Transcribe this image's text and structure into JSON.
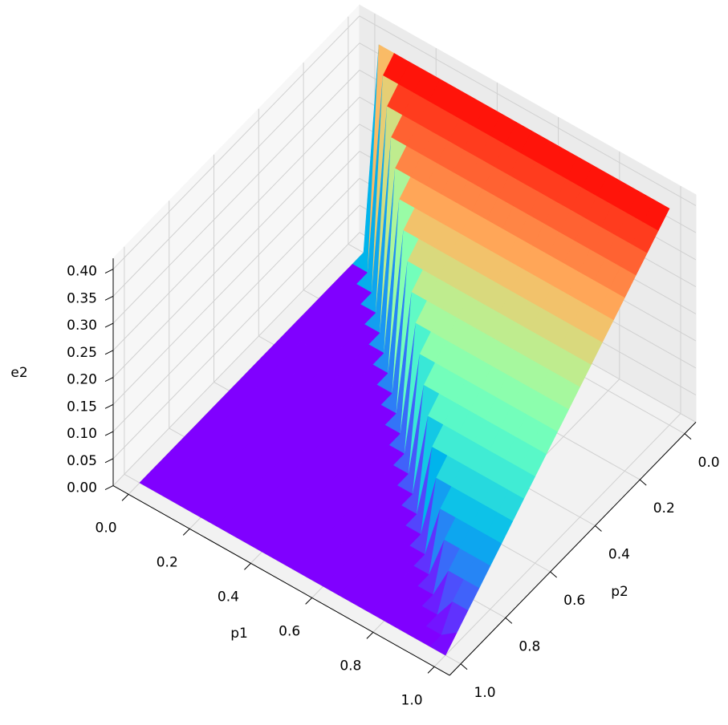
{
  "chart_data": {
    "type": "surface",
    "xlabel": "p1",
    "ylabel": "p2",
    "zlabel": "e2",
    "colormap": "rainbow",
    "xlim": [
      -0.05,
      1.05
    ],
    "ylim": [
      -0.05,
      1.05
    ],
    "zlim": [
      0,
      0.42
    ],
    "xticks": [
      {
        "value": 0,
        "label": "0.0"
      },
      0.2,
      0.4,
      0.6,
      0.8,
      {
        "value": 1,
        "label": "1.0"
      }
    ],
    "yticks": [
      {
        "value": 0,
        "label": "0.0"
      },
      0.2,
      0.4,
      0.6,
      0.8,
      {
        "value": 1,
        "label": "1.0"
      }
    ],
    "zticks": [
      {
        "value": 0,
        "label": "0.00"
      },
      0.05,
      {
        "value": 0.1,
        "label": "0.10"
      },
      0.15,
      {
        "value": 0.2,
        "label": "0.20"
      },
      0.25,
      {
        "value": 0.3,
        "label": "0.30"
      },
      0.35,
      {
        "value": 0.4,
        "label": "0.40"
      }
    ],
    "x": [
      0,
      0.05,
      0.1,
      0.15,
      0.2,
      0.25,
      0.3,
      0.35,
      0.4,
      0.45,
      0.5,
      0.55,
      0.6,
      0.65,
      0.7,
      0.75,
      0.8,
      0.85,
      0.9,
      0.95,
      1
    ],
    "y": [
      0,
      0.05,
      0.1,
      0.15,
      0.2,
      0.25,
      0.3,
      0.35,
      0.4,
      0.45,
      0.5,
      0.55,
      0.6,
      0.65,
      0.7,
      0.75,
      0.8,
      0.85,
      0.9,
      0.95,
      1
    ],
    "z": [
      [
        0,
        0,
        0,
        0,
        0,
        0,
        0,
        0,
        0,
        0,
        0,
        0,
        0,
        0,
        0,
        0,
        0,
        0,
        0,
        0,
        0
      ],
      [
        0.4,
        0,
        0,
        0,
        0,
        0,
        0,
        0,
        0,
        0,
        0,
        0,
        0,
        0,
        0,
        0,
        0,
        0,
        0,
        0,
        0
      ],
      [
        0.4,
        0.38,
        0,
        0,
        0,
        0,
        0,
        0,
        0,
        0,
        0,
        0,
        0,
        0,
        0,
        0,
        0,
        0,
        0,
        0,
        0
      ],
      [
        0.4,
        0.38,
        0.36,
        0,
        0,
        0,
        0,
        0,
        0,
        0,
        0,
        0,
        0,
        0,
        0,
        0,
        0,
        0,
        0,
        0,
        0
      ],
      [
        0.4,
        0.38,
        0.36,
        0.34,
        0,
        0,
        0,
        0,
        0,
        0,
        0,
        0,
        0,
        0,
        0,
        0,
        0,
        0,
        0,
        0,
        0
      ],
      [
        0.4,
        0.38,
        0.36,
        0.34,
        0.32,
        0,
        0,
        0,
        0,
        0,
        0,
        0,
        0,
        0,
        0,
        0,
        0,
        0,
        0,
        0,
        0
      ],
      [
        0.4,
        0.38,
        0.36,
        0.34,
        0.32,
        0.3,
        0,
        0,
        0,
        0,
        0,
        0,
        0,
        0,
        0,
        0,
        0,
        0,
        0,
        0,
        0
      ],
      [
        0.4,
        0.38,
        0.36,
        0.34,
        0.32,
        0.3,
        0.28,
        0,
        0,
        0,
        0,
        0,
        0,
        0,
        0,
        0,
        0,
        0,
        0,
        0,
        0
      ],
      [
        0.4,
        0.38,
        0.36,
        0.34,
        0.32,
        0.3,
        0.28,
        0.26,
        0,
        0,
        0,
        0,
        0,
        0,
        0,
        0,
        0,
        0,
        0,
        0,
        0
      ],
      [
        0.4,
        0.38,
        0.36,
        0.34,
        0.32,
        0.3,
        0.28,
        0.26,
        0.24,
        0,
        0,
        0,
        0,
        0,
        0,
        0,
        0,
        0,
        0,
        0,
        0
      ],
      [
        0.4,
        0.38,
        0.36,
        0.34,
        0.32,
        0.3,
        0.28,
        0.26,
        0.24,
        0.22,
        0,
        0,
        0,
        0,
        0,
        0,
        0,
        0,
        0,
        0,
        0
      ],
      [
        0.4,
        0.38,
        0.36,
        0.34,
        0.32,
        0.3,
        0.28,
        0.26,
        0.24,
        0.22,
        0.2,
        0,
        0,
        0,
        0,
        0,
        0,
        0,
        0,
        0,
        0
      ],
      [
        0.4,
        0.38,
        0.36,
        0.34,
        0.32,
        0.3,
        0.28,
        0.26,
        0.24,
        0.22,
        0.2,
        0.18,
        0,
        0,
        0,
        0,
        0,
        0,
        0,
        0,
        0
      ],
      [
        0.4,
        0.38,
        0.36,
        0.34,
        0.32,
        0.3,
        0.28,
        0.26,
        0.24,
        0.22,
        0.2,
        0.18,
        0.16,
        0,
        0,
        0,
        0,
        0,
        0,
        0,
        0
      ],
      [
        0.4,
        0.38,
        0.36,
        0.34,
        0.32,
        0.3,
        0.28,
        0.26,
        0.24,
        0.22,
        0.2,
        0.18,
        0.16,
        0.14,
        0,
        0,
        0,
        0,
        0,
        0,
        0
      ],
      [
        0.4,
        0.38,
        0.36,
        0.34,
        0.32,
        0.3,
        0.28,
        0.26,
        0.24,
        0.22,
        0.2,
        0.18,
        0.16,
        0.14,
        0.12,
        0,
        0,
        0,
        0,
        0,
        0
      ],
      [
        0.4,
        0.38,
        0.36,
        0.34,
        0.32,
        0.3,
        0.28,
        0.26,
        0.24,
        0.22,
        0.2,
        0.18,
        0.16,
        0.14,
        0.12,
        0.1,
        0,
        0,
        0,
        0,
        0
      ],
      [
        0.4,
        0.38,
        0.36,
        0.34,
        0.32,
        0.3,
        0.28,
        0.26,
        0.24,
        0.22,
        0.2,
        0.18,
        0.16,
        0.14,
        0.12,
        0.1,
        0.08,
        0,
        0,
        0,
        0
      ],
      [
        0.4,
        0.38,
        0.36,
        0.34,
        0.32,
        0.3,
        0.28,
        0.26,
        0.24,
        0.22,
        0.2,
        0.18,
        0.16,
        0.14,
        0.12,
        0.1,
        0.08,
        0.06,
        0,
        0,
        0
      ],
      [
        0.4,
        0.38,
        0.36,
        0.34,
        0.32,
        0.3,
        0.28,
        0.26,
        0.24,
        0.22,
        0.2,
        0.18,
        0.16,
        0.14,
        0.12,
        0.1,
        0.08,
        0.06,
        0.04,
        0,
        0
      ],
      [
        0.4,
        0.38,
        0.36,
        0.34,
        0.32,
        0.3,
        0.28,
        0.26,
        0.24,
        0.22,
        0.2,
        0.18,
        0.16,
        0.14,
        0.12,
        0.1,
        0.08,
        0.06,
        0.04,
        0.02,
        0
      ]
    ]
  }
}
